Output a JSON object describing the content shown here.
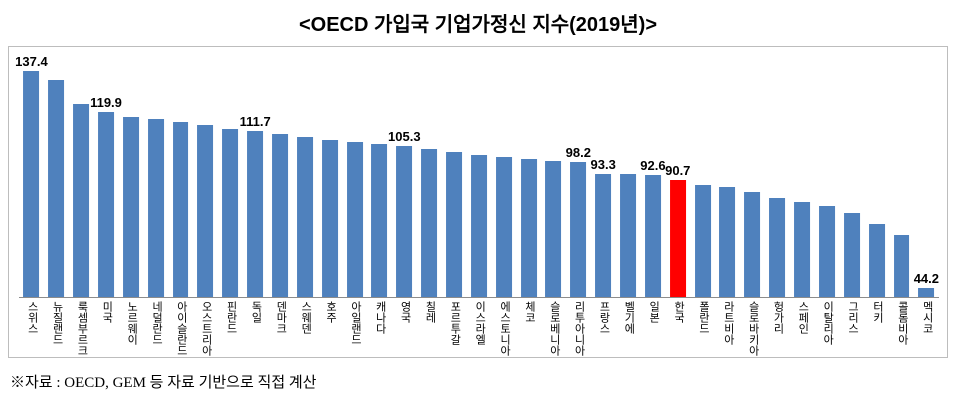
{
  "page": {
    "title": "<OECD 가입국 기업가정신 지수(2019년)>",
    "footnote": "※자료 : OECD, GEM 등 자료 기반으로 직접 계산"
  },
  "chart_data": {
    "type": "bar",
    "title": "<OECD 가입국 기업가정신 지수(2019년)>",
    "categories": [
      "스위스",
      "뉴질랜드",
      "룩셈부르크",
      "미국",
      "노르웨이",
      "네덜란드",
      "아이슬란드",
      "오스트리아",
      "핀란드",
      "독일",
      "덴마크",
      "스웨덴",
      "호주",
      "아일랜드",
      "캐나다",
      "영국",
      "칠레",
      "포르투갈",
      "이스라엘",
      "에스토니아",
      "체코",
      "슬로베니아",
      "리투아니아",
      "프랑스",
      "벨기에",
      "일본",
      "한국",
      "폴란드",
      "라트비아",
      "슬로바키아",
      "헝가리",
      "스페인",
      "이탈리아",
      "그리스",
      "터키",
      "콜롬비아",
      "멕시코"
    ],
    "values": [
      137.4,
      133.6,
      123.2,
      119.9,
      117.8,
      116.7,
      115.5,
      114.2,
      112.6,
      111.7,
      110.4,
      109.0,
      107.8,
      106.8,
      106.0,
      105.3,
      103.8,
      102.5,
      101.4,
      100.5,
      99.6,
      98.9,
      98.2,
      93.3,
      93.0,
      92.6,
      90.7,
      88.5,
      87.4,
      85.3,
      83.0,
      81.2,
      79.3,
      76.2,
      71.5,
      67.0,
      44.2
    ],
    "data_labels": [
      "137.4",
      null,
      null,
      "119.9",
      null,
      null,
      null,
      null,
      null,
      "111.7",
      null,
      null,
      null,
      null,
      null,
      "105.3",
      null,
      null,
      null,
      null,
      null,
      null,
      "98.2",
      "93.3",
      null,
      "92.6",
      "90.7",
      null,
      null,
      null,
      null,
      null,
      null,
      null,
      null,
      null,
      "44.2"
    ],
    "bar_color": "#4F81BD",
    "highlight": {
      "category": "한국",
      "value": 90.7,
      "color": "#FF0000"
    },
    "ylim": [
      40,
      140
    ],
    "xlabel": "",
    "ylabel": "",
    "grid": false,
    "legend": "none",
    "axis_labels_orientation": "vertical-upright"
  }
}
